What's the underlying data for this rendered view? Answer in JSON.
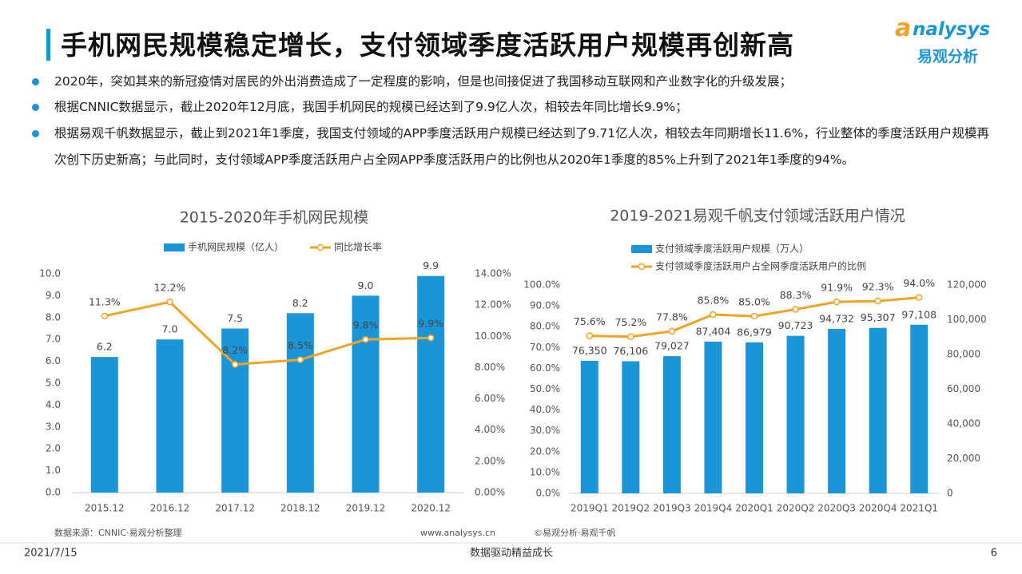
{
  "header": {
    "title": "手机网民规模稳定增长，支付领域季度活跃用户规模再创新高",
    "logo": "nalysys",
    "logo_cn": "易观分析"
  },
  "bullets": [
    "2020年，突如其来的新冠疫情对居民的外出消费造成了一定程度的影响，但是也间接促进了我国移动互联网和产业数字化的升级发展；",
    "根据CNNIC数据显示，截止2020年12月底，我国手机网民的规模已经达到了9.9亿人次，相较去年同比增长9.9%；",
    "根据易观千帆数据显示，截止到2021年1季度，我国支付领域的APP季度活跃用户规模已经达到了9.71亿人次，相较去年同期增长11.6%，行业整体的季度活跃用户规模再次创下历史新高；与此同时，支付领域APP季度活跃用户占全网APP季度活跃用户的比例也从2020年1季度的85%上升到了2021年1季度的94%。"
  ],
  "chart_data": [
    {
      "type": "combo",
      "title": "2015-2020年手机网民规模",
      "legend": "top",
      "categories": [
        "2015.12",
        "2016.12",
        "2017.12",
        "2018.12",
        "2019.12",
        "2020.12"
      ],
      "series": [
        {
          "name": "手机网民规模（亿人）",
          "type": "bar",
          "color": "#1a96d8",
          "axis": "y",
          "values": [
            6.2,
            7.0,
            7.5,
            8.2,
            9.0,
            9.9
          ],
          "value_labels": [
            "6.2",
            "7.0",
            "7.5",
            "8.2",
            "9.0",
            "9.9"
          ]
        },
        {
          "name": "同比增长率",
          "type": "line",
          "color": "#f0a324",
          "axis": "y2",
          "values": [
            11.3,
            12.2,
            8.2,
            8.5,
            9.8,
            9.9
          ],
          "value_labels": [
            "11.3%",
            "12.2%",
            "8.2%",
            "8.5%",
            "9.8%",
            "9.9%"
          ]
        }
      ],
      "ylim": [
        0,
        10
      ],
      "yticks": [
        {
          "value": 0,
          "label": "0.0"
        },
        {
          "value": 1,
          "label": "1.0"
        },
        {
          "value": 2,
          "label": "2.0"
        },
        {
          "value": 3,
          "label": "3.0"
        },
        {
          "value": 4,
          "label": "4.0"
        },
        {
          "value": 5,
          "label": "5.0"
        },
        {
          "value": 6,
          "label": "6.0"
        },
        {
          "value": 7,
          "label": "7.0"
        },
        {
          "value": 8,
          "label": "8.0"
        },
        {
          "value": 9,
          "label": "9.0"
        },
        {
          "value": 10,
          "label": "10.0"
        }
      ],
      "y2lim": [
        0,
        14
      ],
      "y2ticks": [
        {
          "value": 0,
          "label": "0.00%"
        },
        {
          "value": 2,
          "label": "2.00%"
        },
        {
          "value": 4,
          "label": "4.00%"
        },
        {
          "value": 6,
          "label": "6.00%"
        },
        {
          "value": 8,
          "label": "8.00%"
        },
        {
          "value": 10,
          "label": "10.00%"
        },
        {
          "value": 12,
          "label": "12.00%"
        },
        {
          "value": 14,
          "label": "14.00%"
        }
      ]
    },
    {
      "type": "combo",
      "title": "2019-2021易观千帆支付领域活跃用户情况",
      "legend": "top",
      "categories": [
        "2019Q1",
        "2019Q2",
        "2019Q3",
        "2019Q4",
        "2020Q1",
        "2020Q2",
        "2020Q3",
        "2020Q4",
        "2021Q1"
      ],
      "series": [
        {
          "name": "支付领域季度活跃用户规模（万人）",
          "type": "bar",
          "color": "#1a96d8",
          "axis": "y2",
          "values": [
            76350,
            76106,
            79027,
            87404,
            86979,
            90723,
            94732,
            95307,
            97108
          ],
          "value_labels": [
            "76,350",
            "76,106",
            "79,027",
            "87,404",
            "86,979",
            "90,723",
            "94,732",
            "95,307",
            "97,108"
          ]
        },
        {
          "name": "支付领域季度活跃用户占全网季度活跃用户的比例",
          "type": "line",
          "color": "#f0a324",
          "axis": "y",
          "values": [
            75.6,
            75.2,
            77.8,
            85.8,
            85.0,
            88.3,
            91.9,
            92.3,
            94.0
          ],
          "value_labels": [
            "75.6%",
            "75.2%",
            "77.8%",
            "85.8%",
            "85.0%",
            "88.3%",
            "91.9%",
            "92.3%",
            "94.0%"
          ]
        }
      ],
      "ylim": [
        0,
        100
      ],
      "yticks": [
        {
          "value": 0,
          "label": "0.0%"
        },
        {
          "value": 10,
          "label": "10.0%"
        },
        {
          "value": 20,
          "label": "20.0%"
        },
        {
          "value": 30,
          "label": "30.0%"
        },
        {
          "value": 40,
          "label": "40.0%"
        },
        {
          "value": 50,
          "label": "50.0%"
        },
        {
          "value": 60,
          "label": "60.0%"
        },
        {
          "value": 70,
          "label": "70.0%"
        },
        {
          "value": 80,
          "label": "80.0%"
        },
        {
          "value": 90,
          "label": "90.0%"
        },
        {
          "value": 100,
          "label": "100.0%"
        }
      ],
      "y2lim": [
        0,
        120000
      ],
      "y2ticks": [
        0,
        {
          "value": 20000,
          "label": "20,000"
        },
        {
          "value": 40000,
          "label": "40,000"
        },
        {
          "value": 60000,
          "label": "60,000"
        },
        {
          "value": 80000,
          "label": "80,000"
        },
        {
          "value": 100000,
          "label": "100,000"
        },
        {
          "value": 120000,
          "label": "120,000"
        }
      ]
    }
  ],
  "notes": {
    "source_left": "数据来源：CNNIC·易观分析整理",
    "url": "www.analysys.cn",
    "source_right": "©易观分析·易观千帆"
  },
  "footer": {
    "date": "2021/7/15",
    "slogan": "数据驱动精益成长",
    "page": 6
  }
}
